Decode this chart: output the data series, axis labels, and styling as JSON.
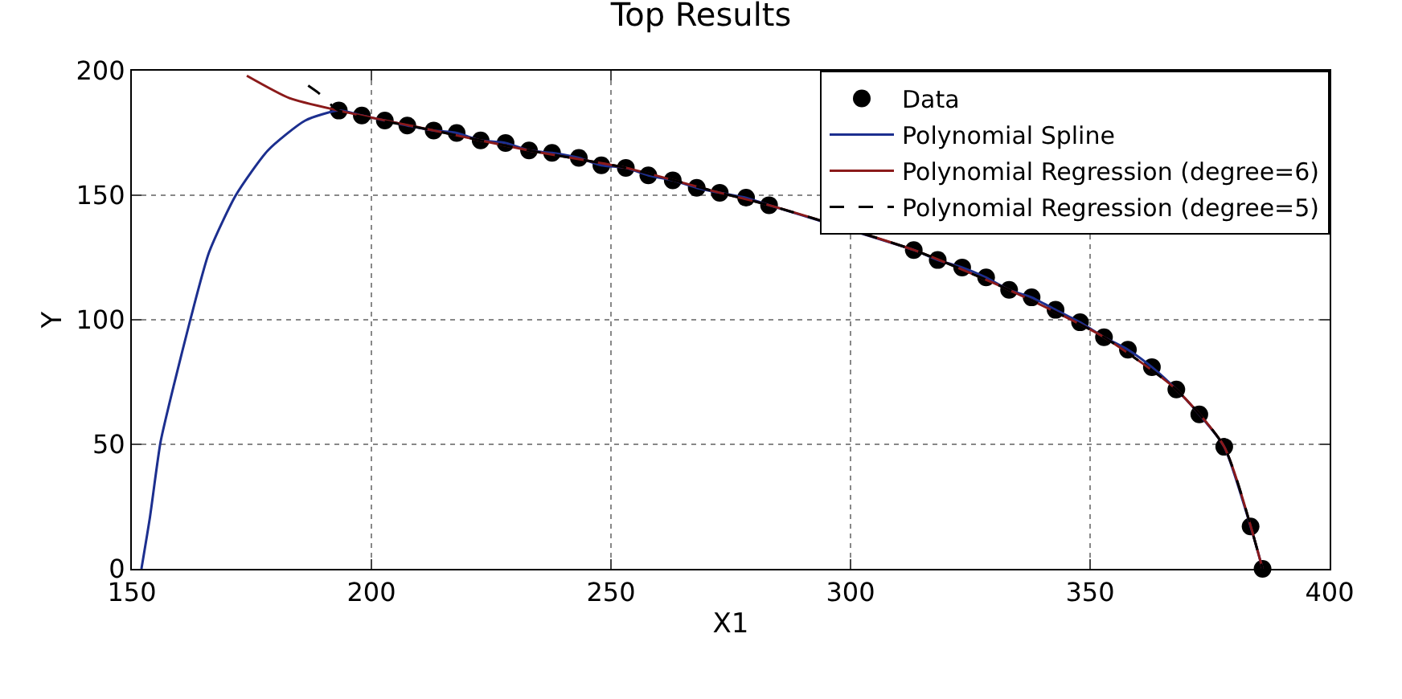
{
  "chart_data": {
    "type": "scatter",
    "title": "Top Results",
    "xlabel": "X1",
    "ylabel": "Y",
    "xlim": [
      150,
      400
    ],
    "xticks": [
      150,
      200,
      250,
      300,
      350,
      400
    ],
    "ylim": [
      0,
      200
    ],
    "yticks": [
      0,
      50,
      100,
      150,
      200
    ],
    "grid": true,
    "legend": "top right",
    "series": [
      {
        "name": "Data",
        "marker": "circle",
        "color": "#000000",
        "x": [
          193.2,
          198,
          202.8,
          207.5,
          213,
          217.8,
          222.8,
          228,
          232.9,
          237.7,
          243.3,
          248,
          253.1,
          257.8,
          262.9,
          267.9,
          272.7,
          278.2,
          283,
          288,
          293,
          298,
          303,
          308,
          313.2,
          318.2,
          323.3,
          328.3,
          333.1,
          337.8,
          342.8,
          347.9,
          352.9,
          357.9,
          362.9,
          368,
          372.8,
          378,
          383.5,
          386
        ],
        "values": [
          184,
          182,
          180,
          178,
          176,
          175,
          172,
          171,
          168,
          167,
          165,
          162,
          161,
          158,
          156,
          153,
          151,
          149,
          146,
          null,
          null,
          null,
          null,
          null,
          128,
          124,
          121,
          117,
          112,
          109,
          104,
          99,
          93,
          88,
          81,
          72,
          62,
          49,
          17,
          0
        ]
      },
      {
        "name": "Polynomial Spline",
        "type": "line",
        "line_style": "solid",
        "color": "#1c2f8f",
        "x": [
          152,
          153.8,
          156,
          158.8,
          162.2,
          166.1,
          171.7,
          178.4,
          186.2,
          193.2,
          198,
          202.8,
          207.5,
          213,
          217.8,
          222.8,
          228,
          232.9,
          237.7,
          243.3,
          248,
          253.1,
          257.8,
          262.9,
          267.9,
          272.7,
          278.2,
          283,
          313.2,
          318.2,
          323.3,
          328.3,
          333.1,
          337.8,
          342.8,
          347.9,
          352.9,
          357.9,
          362.9,
          368,
          372.8,
          378,
          383.5,
          386
        ],
        "values": [
          0,
          21,
          51,
          74,
          100,
          127,
          150,
          168,
          180,
          184,
          182,
          180,
          178,
          176,
          175,
          172,
          171,
          168,
          167,
          165,
          162,
          161,
          158,
          156,
          153,
          151,
          149,
          146,
          128,
          124,
          121,
          117,
          112,
          109,
          104,
          99,
          93,
          88,
          81,
          72,
          62,
          49,
          17,
          0
        ]
      },
      {
        "name": "Polynomial Regression (degree=6)",
        "type": "line",
        "line_style": "solid",
        "color": "#8b1a1a",
        "x": [
          174,
          182.9,
          193.2,
          213,
          232.9,
          253.1,
          272.7,
          283,
          313.2,
          333.1,
          352.9,
          368,
          378,
          386
        ],
        "values": [
          198,
          189,
          184,
          176,
          168,
          161,
          151,
          146,
          128,
          112,
          93,
          72,
          49,
          0
        ]
      },
      {
        "name": "Polynomial Regression (degree=5)",
        "type": "line",
        "line_style": "dashed",
        "color": "#000000",
        "x": [
          186.8,
          189,
          193.2,
          213,
          232.9,
          253.1,
          272.7,
          283,
          313.2,
          333.1,
          352.9,
          368,
          378,
          386
        ],
        "values": [
          194,
          191,
          184,
          176,
          168,
          161,
          151,
          146,
          128,
          112,
          93,
          72,
          49,
          0
        ]
      }
    ]
  }
}
